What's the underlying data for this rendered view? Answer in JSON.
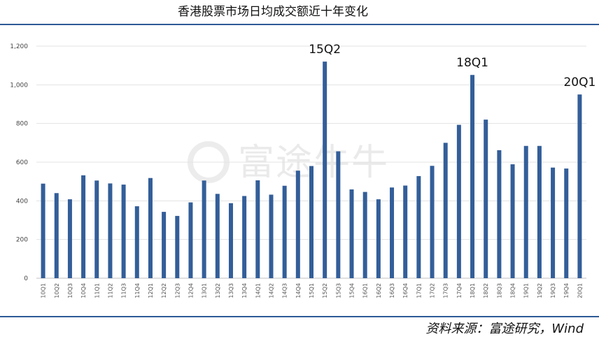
{
  "title": "香港股票市场日均成交额近十年变化",
  "source": "资料来源：富途研究，Wind",
  "watermark": "富途牛牛",
  "chart_data": {
    "type": "bar",
    "title": "香港股票市场日均成交额近十年变化",
    "xlabel": "",
    "ylabel": "",
    "ylim": [
      0,
      1200
    ],
    "yticks": [
      0,
      200,
      400,
      600,
      800,
      1000,
      1200
    ],
    "ytick_labels": [
      "0",
      "200",
      "400",
      "600",
      "800",
      "1,000",
      "1,200"
    ],
    "grid": true,
    "bar_color": "#335e99",
    "categories": [
      "10Q1",
      "10Q2",
      "10Q3",
      "10Q4",
      "11Q1",
      "11Q2",
      "11Q3",
      "11Q4",
      "12Q1",
      "12Q2",
      "12Q3",
      "12Q4",
      "13Q1",
      "13Q2",
      "13Q3",
      "13Q4",
      "14Q1",
      "14Q2",
      "14Q3",
      "14Q4",
      "15Q1",
      "15Q2",
      "15Q3",
      "15Q4",
      "16Q1",
      "16Q2",
      "16Q3",
      "16Q4",
      "17Q1",
      "17Q2",
      "17Q3",
      "17Q4",
      "18Q1",
      "18Q2",
      "18Q3",
      "18Q4",
      "19Q1",
      "19Q2",
      "19Q3",
      "19Q4",
      "20Q1"
    ],
    "values": [
      489,
      440,
      408,
      532,
      505,
      490,
      484,
      372,
      518,
      343,
      322,
      392,
      505,
      436,
      388,
      425,
      506,
      432,
      478,
      556,
      580,
      1120,
      656,
      459,
      446,
      408,
      469,
      479,
      528,
      581,
      700,
      793,
      1051,
      820,
      662,
      589,
      684,
      684,
      572,
      567,
      950
    ],
    "annotations": [
      {
        "category": "15Q2",
        "text": "15Q2"
      },
      {
        "category": "18Q1",
        "text": "18Q1"
      },
      {
        "category": "20Q1",
        "text": "20Q1"
      }
    ]
  }
}
